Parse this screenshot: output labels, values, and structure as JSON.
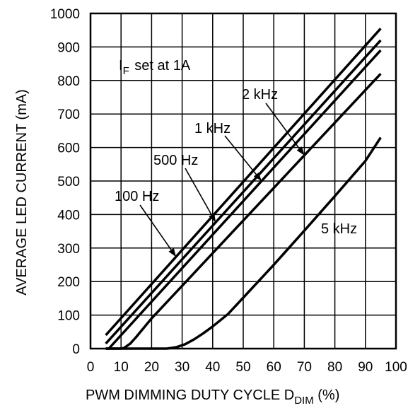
{
  "chart_data": {
    "type": "line",
    "xlabel": "PWM DIMMING DUTY CYCLE D",
    "xlabel_sub": "DIM",
    "xlabel_suffix": " (%)",
    "ylabel": "AVERAGE LED CURRENT (mA)",
    "xlim": [
      0,
      100
    ],
    "ylim": [
      0,
      1000
    ],
    "x_ticks": [
      0,
      10,
      20,
      30,
      40,
      50,
      60,
      70,
      80,
      90,
      100
    ],
    "y_ticks": [
      0,
      100,
      200,
      300,
      400,
      500,
      600,
      700,
      800,
      900,
      1000
    ],
    "grid": true,
    "condition": {
      "main": "I",
      "sub": "F",
      "rest": " set at 1A"
    },
    "series": [
      {
        "name": "100 Hz",
        "points": [
          [
            5,
            40
          ],
          [
            95,
            955
          ]
        ]
      },
      {
        "name": "500 Hz",
        "points": [
          [
            5,
            15
          ],
          [
            95,
            920
          ]
        ]
      },
      {
        "name": "1 kHz",
        "points": [
          [
            5,
            0
          ],
          [
            6,
            0
          ],
          [
            95,
            890
          ]
        ]
      },
      {
        "name": "2 kHz",
        "points": [
          [
            5,
            0
          ],
          [
            10,
            0
          ],
          [
            11,
            2
          ],
          [
            13,
            15
          ],
          [
            15,
            35
          ],
          [
            20,
            90
          ],
          [
            95,
            820
          ]
        ]
      },
      {
        "name": "5 kHz",
        "points": [
          [
            5,
            0
          ],
          [
            25,
            0
          ],
          [
            28,
            4
          ],
          [
            31,
            13
          ],
          [
            34,
            28
          ],
          [
            37,
            46
          ],
          [
            40,
            66
          ],
          [
            45,
            103
          ],
          [
            50,
            152
          ],
          [
            60,
            250
          ],
          [
            70,
            352
          ],
          [
            80,
            455
          ],
          [
            90,
            560
          ],
          [
            95,
            630
          ]
        ]
      }
    ]
  }
}
